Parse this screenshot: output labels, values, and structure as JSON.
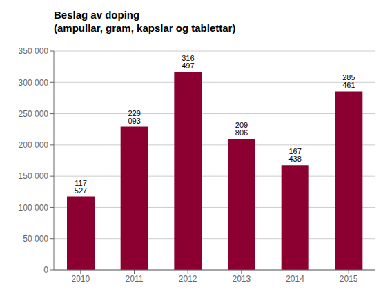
{
  "chart_data": {
    "type": "bar",
    "title": "Beslag av doping",
    "subtitle": "(ampullar, gram, kapslar og tablettar)",
    "categories": [
      "2010",
      "2011",
      "2012",
      "2013",
      "2014",
      "2015"
    ],
    "values": [
      117527,
      229093,
      316497,
      209806,
      167438,
      285461
    ],
    "value_labels": [
      "117 527",
      "229 093",
      "316 497",
      "209 806",
      "167 438",
      "285 461"
    ],
    "data_labels": true,
    "color": "#8B0030",
    "ylim": [
      0,
      350000
    ],
    "yticks": [
      0,
      {
        "value": 50000,
        "label": "50 000"
      },
      {
        "value": 100000,
        "label": "100 000"
      },
      {
        "value": 150000,
        "label": "150 000"
      },
      {
        "value": 200000,
        "label": "200 000"
      },
      {
        "value": 250000,
        "label": "250 000"
      },
      {
        "value": 300000,
        "label": "300 000"
      },
      {
        "value": 350000,
        "label": "350 000"
      }
    ],
    "grid": true
  }
}
